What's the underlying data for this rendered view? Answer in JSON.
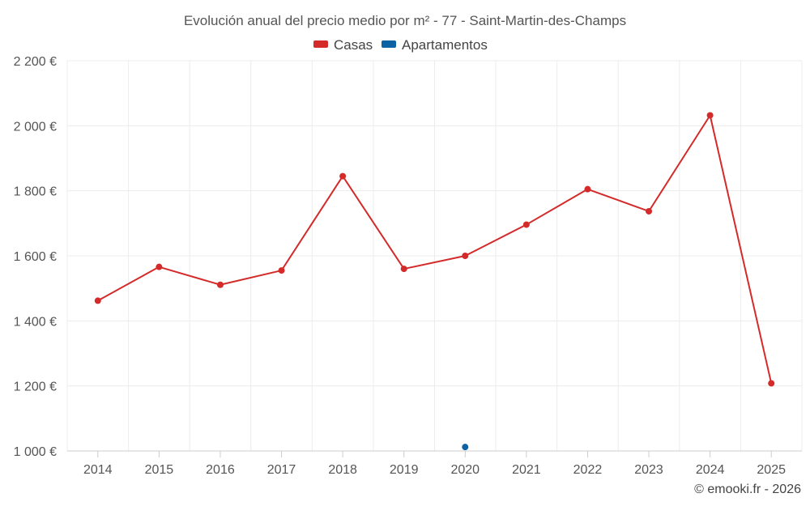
{
  "chart_data": {
    "type": "line",
    "title": "Evolución anual del precio medio por m² - 77 - Saint-Martin-des-Champs",
    "x": [
      "2014",
      "2015",
      "2016",
      "2017",
      "2018",
      "2019",
      "2020",
      "2021",
      "2022",
      "2023",
      "2024",
      "2025"
    ],
    "ylim": [
      1000,
      2200
    ],
    "y_ticks": [
      1000,
      1200,
      1400,
      1600,
      1800,
      2000,
      2200
    ],
    "y_tick_labels": [
      "1 000 €",
      "1 200 €",
      "1 400 €",
      "1 600 €",
      "1 800 €",
      "2 000 €",
      "2 200 €"
    ],
    "grid": true,
    "legend_position": "top-center",
    "series": [
      {
        "name": "Casas",
        "color": "#d42a2a",
        "values": [
          1462,
          1566,
          1511,
          1555,
          1845,
          1560,
          1600,
          1696,
          1805,
          1737,
          2032,
          1208
        ]
      },
      {
        "name": "Apartamentos",
        "color": "#0b62a4",
        "values": [
          null,
          null,
          null,
          null,
          null,
          null,
          1012,
          null,
          null,
          null,
          null,
          null
        ]
      }
    ]
  },
  "credit": "© emooki.fr - 2026"
}
